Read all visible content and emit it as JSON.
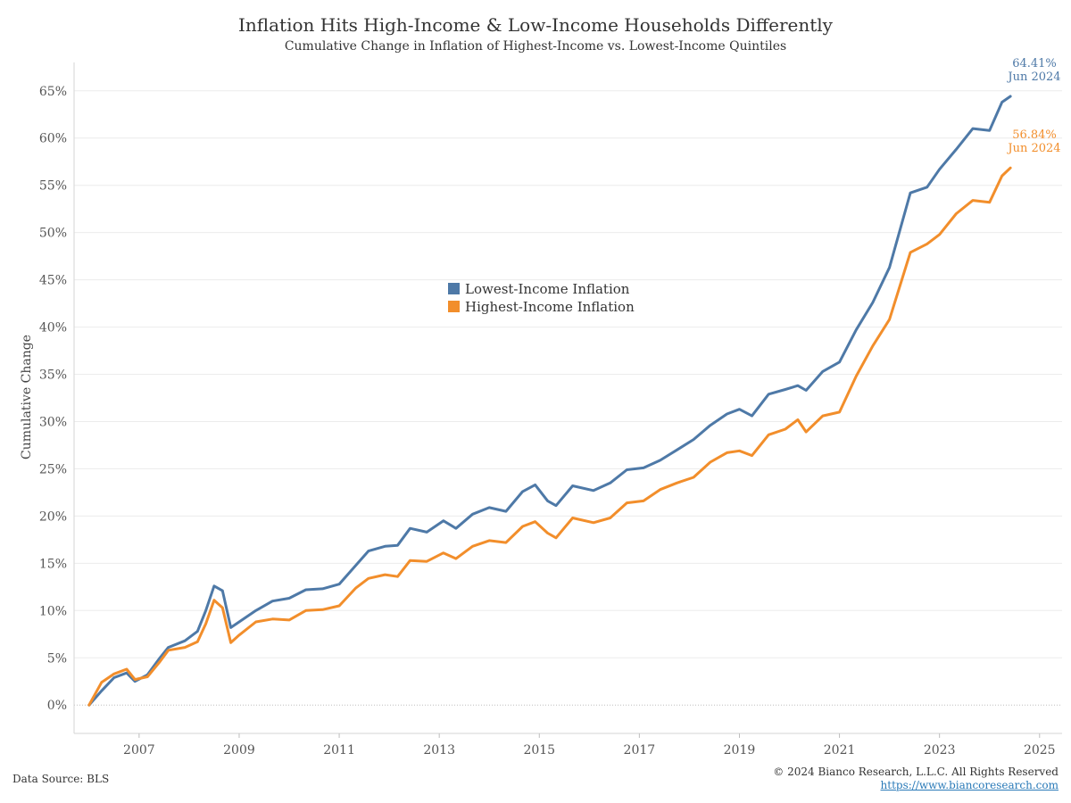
{
  "chart_data": {
    "type": "line",
    "title": "Inflation Hits High-Income & Low-Income Households Differently",
    "subtitle": "Cumulative Change in Inflation of Highest-Income vs. Lowest-Income Quintiles",
    "ylabel": "Cumulative Change",
    "xlabel": "",
    "ylim": [
      -3,
      68
    ],
    "y_ticks": [
      "0%",
      "5%",
      "10%",
      "15%",
      "20%",
      "25%",
      "30%",
      "35%",
      "40%",
      "45%",
      "50%",
      "55%",
      "60%",
      "65%"
    ],
    "x_ticks": [
      "2007",
      "2009",
      "2011",
      "2013",
      "2015",
      "2017",
      "2019",
      "2021",
      "2023",
      "2025"
    ],
    "grid": true,
    "legend_position": "center",
    "series": [
      {
        "name": "Lowest-Income Inflation",
        "color": "#4e79a7",
        "points": [
          [
            "2006-01",
            0.0
          ],
          [
            "2006-04",
            1.5
          ],
          [
            "2006-07",
            2.9
          ],
          [
            "2006-10",
            3.4
          ],
          [
            "2006-12",
            2.5
          ],
          [
            "2007-03",
            3.2
          ],
          [
            "2007-06",
            5.0
          ],
          [
            "2007-08",
            6.1
          ],
          [
            "2007-12",
            6.8
          ],
          [
            "2008-03",
            7.8
          ],
          [
            "2008-05",
            10.0
          ],
          [
            "2008-07",
            12.6
          ],
          [
            "2008-09",
            12.1
          ],
          [
            "2008-11",
            8.2
          ],
          [
            "2009-01",
            8.8
          ],
          [
            "2009-05",
            10.0
          ],
          [
            "2009-09",
            11.0
          ],
          [
            "2010-01",
            11.3
          ],
          [
            "2010-05",
            12.2
          ],
          [
            "2010-09",
            12.3
          ],
          [
            "2011-01",
            12.8
          ],
          [
            "2011-05",
            14.8
          ],
          [
            "2011-08",
            16.3
          ],
          [
            "2011-12",
            16.8
          ],
          [
            "2012-03",
            16.9
          ],
          [
            "2012-06",
            18.7
          ],
          [
            "2012-10",
            18.3
          ],
          [
            "2013-02",
            19.5
          ],
          [
            "2013-05",
            18.7
          ],
          [
            "2013-09",
            20.2
          ],
          [
            "2014-01",
            20.9
          ],
          [
            "2014-05",
            20.5
          ],
          [
            "2014-09",
            22.6
          ],
          [
            "2014-12",
            23.3
          ],
          [
            "2015-03",
            21.6
          ],
          [
            "2015-05",
            21.1
          ],
          [
            "2015-09",
            23.2
          ],
          [
            "2016-02",
            22.7
          ],
          [
            "2016-06",
            23.5
          ],
          [
            "2016-10",
            24.9
          ],
          [
            "2017-02",
            25.1
          ],
          [
            "2017-06",
            25.9
          ],
          [
            "2017-10",
            27.0
          ],
          [
            "2018-02",
            28.1
          ],
          [
            "2018-06",
            29.6
          ],
          [
            "2018-10",
            30.8
          ],
          [
            "2019-01",
            31.3
          ],
          [
            "2019-04",
            30.6
          ],
          [
            "2019-08",
            32.9
          ],
          [
            "2019-12",
            33.4
          ],
          [
            "2020-03",
            33.8
          ],
          [
            "2020-05",
            33.3
          ],
          [
            "2020-09",
            35.3
          ],
          [
            "2021-01",
            36.3
          ],
          [
            "2021-05",
            39.7
          ],
          [
            "2021-09",
            42.6
          ],
          [
            "2022-01",
            46.3
          ],
          [
            "2022-06",
            54.2
          ],
          [
            "2022-10",
            54.8
          ],
          [
            "2023-01",
            56.7
          ],
          [
            "2023-05",
            58.8
          ],
          [
            "2023-09",
            61.0
          ],
          [
            "2024-01",
            60.8
          ],
          [
            "2024-04",
            63.8
          ],
          [
            "2024-06",
            64.41
          ]
        ],
        "end_value": "64.41%",
        "end_date": "Jun 2024"
      },
      {
        "name": "Highest-Income Inflation",
        "color": "#f28e2b",
        "points": [
          [
            "2006-01",
            0.0
          ],
          [
            "2006-04",
            2.4
          ],
          [
            "2006-07",
            3.3
          ],
          [
            "2006-10",
            3.8
          ],
          [
            "2006-12",
            2.7
          ],
          [
            "2007-03",
            3.0
          ],
          [
            "2007-06",
            4.6
          ],
          [
            "2007-08",
            5.8
          ],
          [
            "2007-12",
            6.1
          ],
          [
            "2008-03",
            6.7
          ],
          [
            "2008-05",
            8.6
          ],
          [
            "2008-07",
            11.1
          ],
          [
            "2008-09",
            10.3
          ],
          [
            "2008-11",
            6.6
          ],
          [
            "2009-01",
            7.4
          ],
          [
            "2009-05",
            8.8
          ],
          [
            "2009-09",
            9.1
          ],
          [
            "2010-01",
            9.0
          ],
          [
            "2010-05",
            10.0
          ],
          [
            "2010-09",
            10.1
          ],
          [
            "2011-01",
            10.5
          ],
          [
            "2011-05",
            12.4
          ],
          [
            "2011-08",
            13.4
          ],
          [
            "2011-12",
            13.8
          ],
          [
            "2012-03",
            13.6
          ],
          [
            "2012-06",
            15.3
          ],
          [
            "2012-10",
            15.2
          ],
          [
            "2013-02",
            16.1
          ],
          [
            "2013-05",
            15.5
          ],
          [
            "2013-09",
            16.8
          ],
          [
            "2014-01",
            17.4
          ],
          [
            "2014-05",
            17.2
          ],
          [
            "2014-09",
            18.9
          ],
          [
            "2014-12",
            19.4
          ],
          [
            "2015-03",
            18.2
          ],
          [
            "2015-05",
            17.7
          ],
          [
            "2015-09",
            19.8
          ],
          [
            "2016-02",
            19.3
          ],
          [
            "2016-06",
            19.8
          ],
          [
            "2016-10",
            21.4
          ],
          [
            "2017-02",
            21.6
          ],
          [
            "2017-06",
            22.8
          ],
          [
            "2017-10",
            23.5
          ],
          [
            "2018-02",
            24.1
          ],
          [
            "2018-06",
            25.7
          ],
          [
            "2018-10",
            26.7
          ],
          [
            "2019-01",
            26.9
          ],
          [
            "2019-04",
            26.4
          ],
          [
            "2019-08",
            28.6
          ],
          [
            "2019-12",
            29.2
          ],
          [
            "2020-03",
            30.2
          ],
          [
            "2020-05",
            28.9
          ],
          [
            "2020-09",
            30.6
          ],
          [
            "2021-01",
            31.0
          ],
          [
            "2021-05",
            34.8
          ],
          [
            "2021-09",
            38.0
          ],
          [
            "2022-01",
            40.8
          ],
          [
            "2022-06",
            47.9
          ],
          [
            "2022-10",
            48.8
          ],
          [
            "2023-01",
            49.8
          ],
          [
            "2023-05",
            52.0
          ],
          [
            "2023-09",
            53.4
          ],
          [
            "2024-01",
            53.2
          ],
          [
            "2024-04",
            56.0
          ],
          [
            "2024-06",
            56.84
          ]
        ],
        "end_value": "56.84%",
        "end_date": "Jun 2024"
      }
    ]
  },
  "footer": {
    "source": "Data Source: BLS",
    "copyright": "© 2024 Bianco Research, L.L.C. All Rights Reserved",
    "url": "https://www.biancoresearch.com"
  }
}
